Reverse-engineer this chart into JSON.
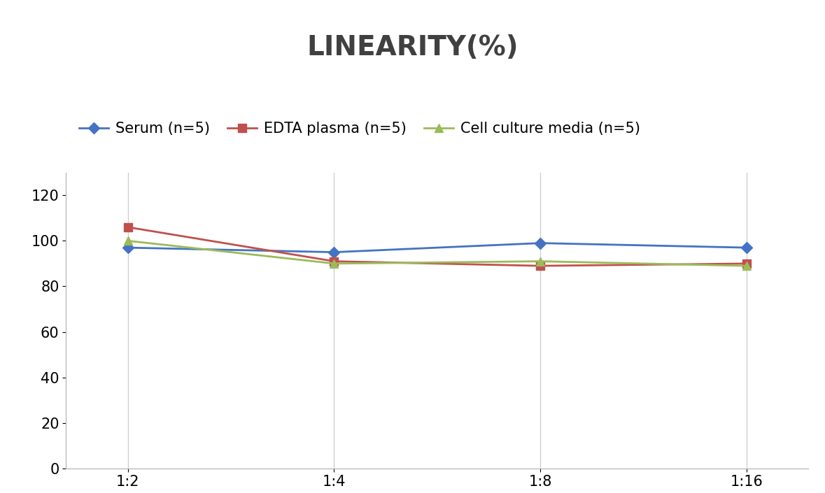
{
  "title": "LINEARITY(%)",
  "x_labels": [
    "1:2",
    "1:4",
    "1:8",
    "1:16"
  ],
  "series": [
    {
      "label": "Serum (n=5)",
      "values": [
        97,
        95,
        99,
        97
      ],
      "color": "#4472C4",
      "marker": "D",
      "marker_size": 8,
      "linewidth": 2
    },
    {
      "label": "EDTA plasma (n=5)",
      "values": [
        106,
        91,
        89,
        90
      ],
      "color": "#C0504D",
      "marker": "s",
      "marker_size": 8,
      "linewidth": 2
    },
    {
      "label": "Cell culture media (n=5)",
      "values": [
        100,
        90,
        91,
        89
      ],
      "color": "#9BBB59",
      "marker": "^",
      "marker_size": 8,
      "linewidth": 2
    }
  ],
  "ylim": [
    0,
    130
  ],
  "yticks": [
    0,
    20,
    40,
    60,
    80,
    100,
    120
  ],
  "background_color": "#FFFFFF",
  "grid_color": "#D0D0D0",
  "title_fontsize": 28,
  "legend_fontsize": 15,
  "tick_fontsize": 15
}
